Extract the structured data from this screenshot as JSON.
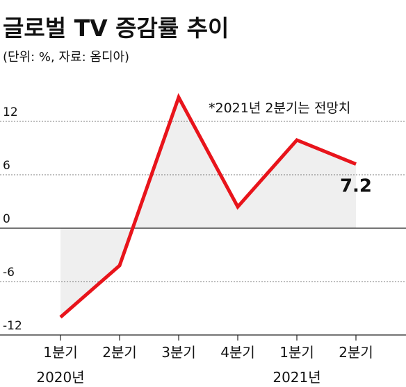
{
  "chart_data": {
    "type": "line",
    "title": "글로벌 TV 증감률 추이",
    "subtitle": "(단위: %, 자료: 옴디아)",
    "annotation": "*2021년 2분기는 전망치",
    "categories": [
      "1분기",
      "2분기",
      "3분기",
      "4분기",
      "1분기",
      "2분기"
    ],
    "year_labels": [
      "2020년",
      null,
      null,
      null,
      "2021년",
      null
    ],
    "series": [
      {
        "name": "증감률",
        "color": "#e8141b",
        "values": [
          -10.0,
          -4.2,
          14.7,
          2.4,
          9.9,
          7.2
        ]
      }
    ],
    "show_value_label": "last",
    "area_color": "#efefef",
    "ylim": [
      -12,
      18
    ],
    "yticks": [
      12,
      6,
      0,
      -6,
      -12
    ],
    "grid": true
  }
}
